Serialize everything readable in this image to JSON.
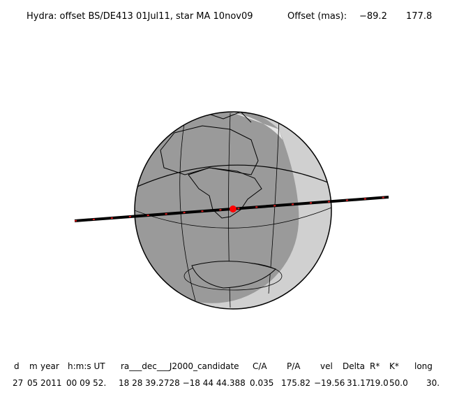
{
  "header": {
    "title": "Hydra: offset BS/DE413 01Jul11, star MA 10nov09",
    "offset_label": "Offset (mas):",
    "offset_values": [
      "−89.2",
      "177.8"
    ]
  },
  "table": {
    "columns": [
      "d",
      "m",
      "year",
      "h:m:s UT",
      "ra___dec___J2000_candidate",
      "C/A",
      "P/A",
      "vel",
      "Delta",
      "R*",
      "K*",
      "long"
    ],
    "rows": [
      [
        "27",
        "05",
        "2011",
        "00 09 52.",
        "18 28 39.2728 −18 44 44.388",
        "0.035",
        "175.82",
        "−19.56",
        "31.17",
        "19.0",
        "50.0",
        "30."
      ]
    ]
  }
}
